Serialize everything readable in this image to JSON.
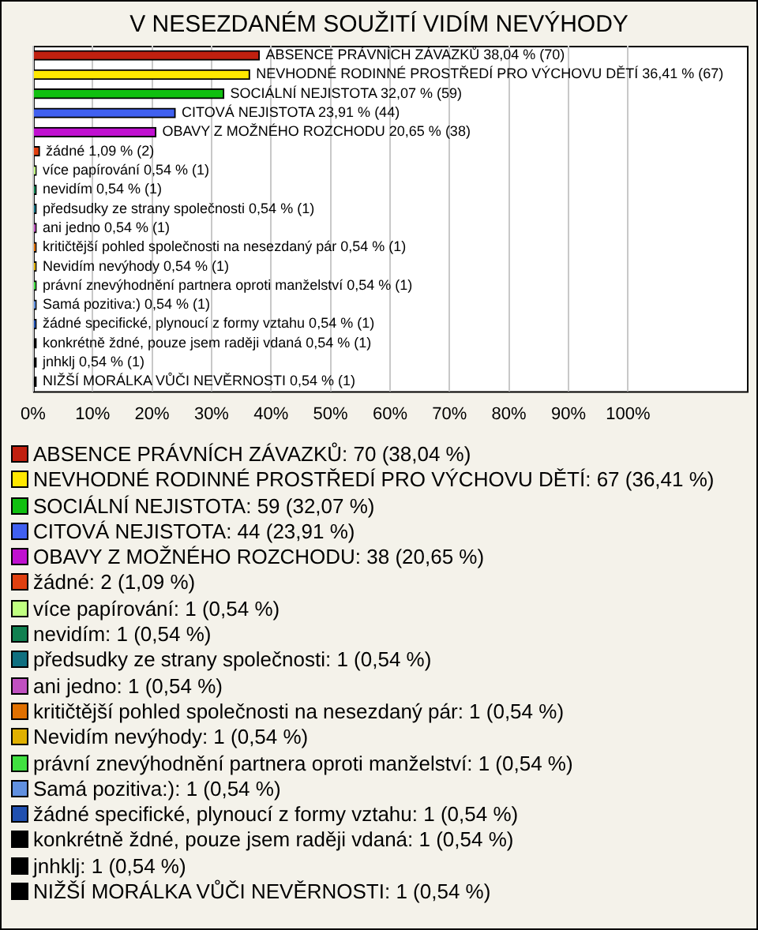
{
  "chart_data": {
    "type": "bar",
    "orientation": "horizontal",
    "title": "V NESEZDANÉM SOUŽITÍ VIDÍM NEVÝHODY",
    "categories": [
      "ABSENCE PRÁVNÍCH ZÁVAZKŮ",
      "NEVHODNÉ RODINNÉ PROSTŘEDÍ PRO VÝCHOVU DĚTÍ",
      "SOCIÁLNÍ NEJISTOTA",
      "CITOVÁ NEJISTOTA",
      "OBAVY Z MOŽNÉHO ROZCHODU",
      "žádné",
      "více papírování",
      "nevidím",
      "předsudky ze strany společnosti",
      "ani jedno",
      "kritičtější pohled společnosti na nesezdaný pár",
      "Nevidím nevýhody",
      "právní znevýhodnění partnera oproti manželství",
      "Samá pozitiva:)",
      "žádné specifické, plynoucí z formy vztahu",
      "konkrétně ždné, pouze jsem raději vdaná",
      "jnhklj",
      "NIŽŠÍ MORÁLKA VŮČI NEVĚRNOSTI"
    ],
    "values": [
      38.04,
      36.41,
      32.07,
      23.91,
      20.65,
      1.09,
      0.54,
      0.54,
      0.54,
      0.54,
      0.54,
      0.54,
      0.54,
      0.54,
      0.54,
      0.54,
      0.54,
      0.54
    ],
    "value_labels": [
      "38,04 % (70)",
      "36,41 % (67)",
      "32,07 % (59)",
      "23,91 % (44)",
      "20,65 % (38)",
      "1,09 % (2)",
      "0,54 % (1)",
      "0,54 % (1)",
      "0,54 % (1)",
      "0,54 % (1)",
      "0,54 % (1)",
      "0,54 % (1)",
      "0,54 % (1)",
      "0,54 % (1)",
      "0,54 % (1)",
      "0,54 % (1)",
      "0,54 % (1)",
      "0,54 % (1)"
    ],
    "colors": [
      "#c0200f",
      "#ffe800",
      "#10c010",
      "#4060f0",
      "#c010d0",
      "#e04010",
      "#c0ff80",
      "#108050",
      "#107080",
      "#c050c0",
      "#e07000",
      "#e0b000",
      "#40e040",
      "#6090e0",
      "#2050b0",
      "#000000",
      "#000000",
      "#000000"
    ],
    "xlim": [
      0,
      120
    ],
    "xticks": [
      {
        "value": 0,
        "label": "0%"
      },
      {
        "value": 10,
        "label": "10%"
      },
      {
        "value": 20,
        "label": "20%"
      },
      {
        "value": 30,
        "label": "30%"
      },
      {
        "value": 40,
        "label": "40%"
      },
      {
        "value": 50,
        "label": "50%"
      },
      {
        "value": 60,
        "label": "60%"
      },
      {
        "value": 70,
        "label": "70%"
      },
      {
        "value": 80,
        "label": "80%"
      },
      {
        "value": 90,
        "label": "90%"
      },
      {
        "value": 100,
        "label": "100%"
      }
    ],
    "grid": "x",
    "tick_labels": "x",
    "annotations": [
      "ABSENCE PRÁVNÍCH ZÁVAZKŮ: 70 (38,04 %)",
      "NEVHODNÉ RODINNÉ PROSTŘEDÍ PRO VÝCHOVU DĚTÍ: 67 (36,41 %)",
      "SOCIÁLNÍ NEJISTOTA: 59 (32,07 %)",
      "CITOVÁ NEJISTOTA: 44 (23,91 %)",
      "OBAVY Z MOŽNÉHO ROZCHODU: 38 (20,65 %)",
      "žádné: 2 (1,09 %)",
      "více papírování: 1 (0,54 %)",
      "nevidím: 1 (0,54 %)",
      "předsudky ze strany společnosti: 1 (0,54 %)",
      "ani jedno: 1 (0,54 %)",
      "kritičtější pohled společnosti na nesezdaný pár: 1 (0,54 %)",
      "Nevidím nevýhody: 1 (0,54 %)",
      "právní znevýhodnění partnera oproti manželství: 1 (0,54 %)",
      "Samá pozitiva:): 1 (0,54 %)",
      "žádné specifické, plynoucí z formy vztahu: 1 (0,54 %)",
      "konkrétně ždné, pouze jsem raději vdaná: 1 (0,54 %)",
      "jnhklj: 1 (0,54 %)",
      "NIŽŠÍ MORÁLKA VŮČI NEVĚRNOSTI: 1 (0,54 %)"
    ]
  }
}
